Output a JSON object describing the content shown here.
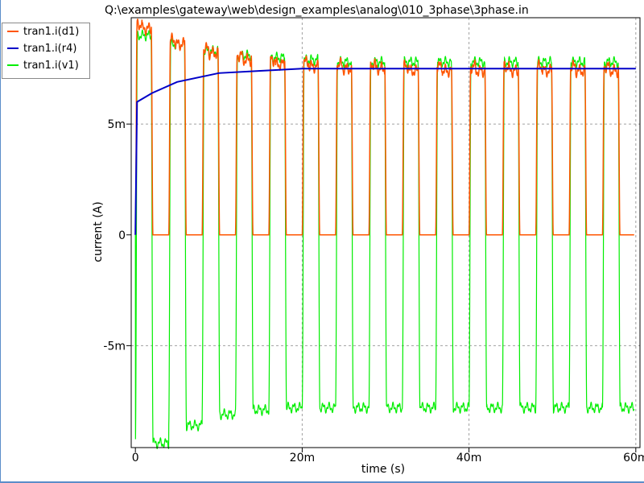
{
  "title": "Q:\\examples\\gateway\\web\\design_examples\\analog\\010_3phase\\3phase.in",
  "colors": {
    "d1": "#ff5500",
    "r4": "#0000c8",
    "v1": "#00ee00",
    "title": "#000080",
    "grid": "#a0a0a0",
    "axis": "#000000",
    "frame": "#5b8dc9"
  },
  "legend": [
    {
      "label": "tran1.i(d1)",
      "color": "#ff5500"
    },
    {
      "label": "tran1.i(r4)",
      "color": "#0000c8"
    },
    {
      "label": "tran1.i(v1)",
      "color": "#00ee00"
    }
  ],
  "chart_data": {
    "type": "line",
    "title": "Q:\\examples\\gateway\\web\\design_examples\\analog\\010_3phase\\3phase.in",
    "xlabel": "time (s)",
    "ylabel": "current (A)",
    "xlim": [
      -0.0005,
      0.0605
    ],
    "ylim": [
      -0.0096,
      0.0098
    ],
    "x_ticks": [
      {
        "value": 0,
        "label": "0"
      },
      {
        "value": 0.02,
        "label": "20m"
      },
      {
        "value": 0.04,
        "label": "40m"
      },
      {
        "value": 0.06,
        "label": "60m"
      }
    ],
    "y_ticks": [
      {
        "value": -0.005,
        "label": "-5m"
      },
      {
        "value": 0,
        "label": "0"
      },
      {
        "value": 0.005,
        "label": "5m"
      }
    ],
    "grid": true,
    "legend_position": "top-left outside",
    "pulse_period": 0.004,
    "series": [
      {
        "name": "tran1.i(d1)",
        "kind": "half-wave pulses",
        "description": "positive pulses each period, decaying peak then settling",
        "peaks": [
          0.0095,
          0.0088,
          0.0084,
          0.0081,
          0.0079,
          0.0078,
          0.0077,
          0.0077,
          0.0076,
          0.0076,
          0.0076,
          0.0076,
          0.0076,
          0.0076,
          0.0076
        ],
        "baseline": 0
      },
      {
        "name": "tran1.i(r4)",
        "kind": "exponential rise",
        "x": [
          0,
          0.0002,
          0.002,
          0.005,
          0.01,
          0.015,
          0.02,
          0.03,
          0.04,
          0.05,
          0.06
        ],
        "y": [
          0,
          0.006,
          0.0064,
          0.0069,
          0.0073,
          0.0074,
          0.0075,
          0.0075,
          0.0075,
          0.0075,
          0.0075
        ]
      },
      {
        "name": "tran1.i(v1)",
        "kind": "square-ish wave",
        "description": "alternates between positive and negative levels each half period",
        "positive_levels": [
          0.009,
          0.0086,
          0.0083,
          0.0081,
          0.008,
          0.0079,
          0.0078,
          0.0078,
          0.0078,
          0.0078,
          0.0078,
          0.0078,
          0.0078,
          0.0078,
          0.0078
        ],
        "negative_levels": [
          -0.0094,
          -0.0086,
          -0.0081,
          -0.0079,
          -0.0078,
          -0.0078,
          -0.0078,
          -0.0078,
          -0.0078,
          -0.0078,
          -0.0078,
          -0.0078,
          -0.0078,
          -0.0078,
          -0.0078
        ]
      }
    ]
  }
}
